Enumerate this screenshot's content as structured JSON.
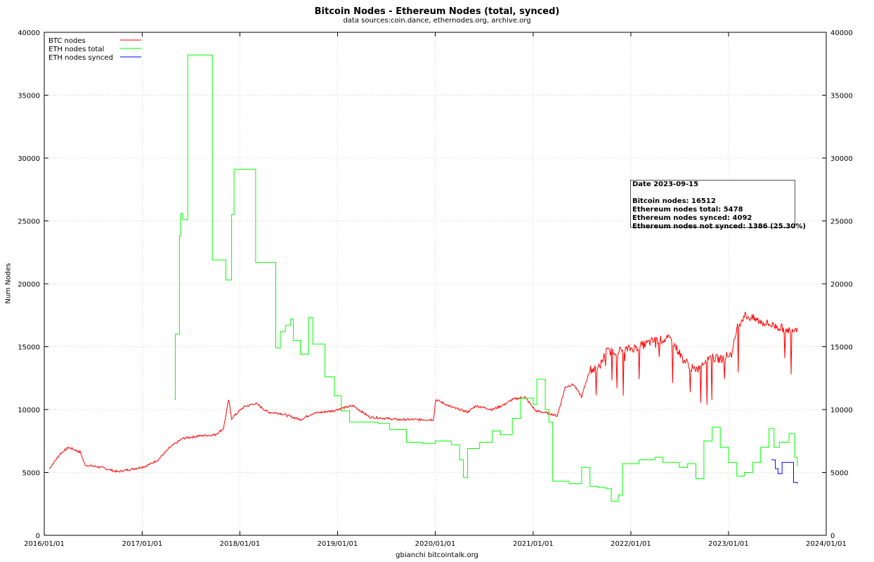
{
  "chart_data": {
    "type": "line",
    "title": "Bitcoin Nodes - Ethereum Nodes (total, synced)",
    "subtitle": "data sources:coin.dance, ethernodes.org, archive.org",
    "xlabel": "gbianchi bitcointalk.org",
    "ylabel": "Num Nodes",
    "x_ticks": [
      "2016/01/01",
      "2017/01/01",
      "2018/01/01",
      "2019/01/01",
      "2020/01/01",
      "2021/01/01",
      "2022/01/01",
      "2023/01/01",
      "2024/01/01"
    ],
    "y_ticks": [
      0,
      5000,
      10000,
      15000,
      20000,
      25000,
      30000,
      35000,
      40000
    ],
    "xlim": [
      "2016-01-01",
      "2024-01-01"
    ],
    "ylim": [
      0,
      40000
    ],
    "grid": true,
    "legend_position": "top-left",
    "series": [
      {
        "name": "BTC nodes",
        "color": "#ff0000",
        "style": "noisy",
        "points": [
          [
            "2016-01-20",
            5300
          ],
          [
            "2016-03-01",
            6500
          ],
          [
            "2016-04-01",
            7000
          ],
          [
            "2016-05-15",
            6600
          ],
          [
            "2016-06-01",
            5600
          ],
          [
            "2016-08-01",
            5400
          ],
          [
            "2016-10-01",
            5050
          ],
          [
            "2016-12-01",
            5300
          ],
          [
            "2017-01-15",
            5500
          ],
          [
            "2017-03-01",
            6000
          ],
          [
            "2017-04-15",
            7000
          ],
          [
            "2017-06-01",
            7700
          ],
          [
            "2017-08-01",
            7900
          ],
          [
            "2017-10-01",
            8000
          ],
          [
            "2017-11-01",
            8500
          ],
          [
            "2017-11-20",
            10800
          ],
          [
            "2017-12-01",
            9300
          ],
          [
            "2018-01-15",
            10200
          ],
          [
            "2018-03-01",
            10500
          ],
          [
            "2018-04-15",
            9800
          ],
          [
            "2018-06-01",
            9700
          ],
          [
            "2018-08-15",
            9200
          ],
          [
            "2018-10-01",
            9700
          ],
          [
            "2018-12-15",
            9900
          ],
          [
            "2019-01-15",
            10100
          ],
          [
            "2019-03-01",
            10300
          ],
          [
            "2019-05-01",
            9400
          ],
          [
            "2019-07-01",
            9300
          ],
          [
            "2019-08-15",
            9200
          ],
          [
            "2019-10-01",
            9200
          ],
          [
            "2019-12-25",
            9200
          ],
          [
            "2020-01-03",
            10800
          ],
          [
            "2020-03-01",
            10200
          ],
          [
            "2020-05-01",
            9800
          ],
          [
            "2020-06-01",
            10300
          ],
          [
            "2020-08-01",
            10000
          ],
          [
            "2020-09-15",
            10400
          ],
          [
            "2020-10-15",
            10800
          ],
          [
            "2020-12-01",
            11000
          ],
          [
            "2021-01-10",
            9900
          ],
          [
            "2021-03-01",
            9700
          ],
          [
            "2021-04-01",
            9500
          ],
          [
            "2021-05-01",
            11800
          ],
          [
            "2021-06-01",
            12000
          ],
          [
            "2021-07-01",
            11000
          ],
          [
            "2021-08-01",
            13200
          ],
          [
            "2021-09-01",
            13200
          ],
          [
            "2021-10-01",
            14600
          ],
          [
            "2021-12-01",
            14700
          ],
          [
            "2022-02-01",
            15000
          ],
          [
            "2022-04-01",
            15500
          ],
          [
            "2022-06-01",
            15600
          ],
          [
            "2022-07-15",
            14000
          ],
          [
            "2022-09-01",
            13000
          ],
          [
            "2022-10-15",
            14200
          ],
          [
            "2022-12-01",
            14000
          ],
          [
            "2023-01-15",
            14500
          ],
          [
            "2023-02-01",
            16500
          ],
          [
            "2023-03-01",
            17500
          ],
          [
            "2023-05-01",
            17000
          ],
          [
            "2023-07-01",
            16600
          ],
          [
            "2023-08-15",
            16300
          ],
          [
            "2023-09-15",
            16512
          ]
        ]
      },
      {
        "name": "ETH nodes total",
        "color": "#00ff00",
        "style": "step",
        "points": [
          [
            "2017-05-01",
            10800
          ],
          [
            "2017-05-05",
            16000
          ],
          [
            "2017-05-20",
            23800
          ],
          [
            "2017-05-25",
            25600
          ],
          [
            "2017-06-01",
            25100
          ],
          [
            "2017-06-20",
            38200
          ],
          [
            "2017-09-20",
            21900
          ],
          [
            "2017-11-10",
            20300
          ],
          [
            "2017-12-01",
            25500
          ],
          [
            "2017-12-10",
            29100
          ],
          [
            "2018-03-01",
            21700
          ],
          [
            "2018-05-15",
            14900
          ],
          [
            "2018-06-01",
            16200
          ],
          [
            "2018-06-20",
            16700
          ],
          [
            "2018-07-10",
            17200
          ],
          [
            "2018-07-20",
            15500
          ],
          [
            "2018-08-15",
            14400
          ],
          [
            "2018-09-15",
            17300
          ],
          [
            "2018-10-01",
            15200
          ],
          [
            "2018-11-15",
            12600
          ],
          [
            "2018-12-20",
            11100
          ],
          [
            "2019-01-15",
            9900
          ],
          [
            "2019-02-15",
            9000
          ],
          [
            "2019-06-01",
            8900
          ],
          [
            "2019-07-15",
            8400
          ],
          [
            "2019-09-15",
            7400
          ],
          [
            "2019-11-15",
            7300
          ],
          [
            "2020-01-01",
            7500
          ],
          [
            "2020-03-01",
            7200
          ],
          [
            "2020-04-01",
            6000
          ],
          [
            "2020-04-15",
            4600
          ],
          [
            "2020-05-01",
            6900
          ],
          [
            "2020-06-15",
            7400
          ],
          [
            "2020-08-01",
            8300
          ],
          [
            "2020-09-01",
            8000
          ],
          [
            "2020-10-15",
            9300
          ],
          [
            "2020-11-15",
            10900
          ],
          [
            "2021-01-01",
            10400
          ],
          [
            "2021-01-15",
            12400
          ],
          [
            "2021-02-15",
            10000
          ],
          [
            "2021-03-01",
            9000
          ],
          [
            "2021-03-15",
            4300
          ],
          [
            "2021-05-15",
            4100
          ],
          [
            "2021-07-01",
            5400
          ],
          [
            "2021-08-01",
            3900
          ],
          [
            "2021-09-01",
            3800
          ],
          [
            "2021-10-01",
            3700
          ],
          [
            "2021-10-20",
            2700
          ],
          [
            "2021-11-15",
            3200
          ],
          [
            "2021-12-01",
            5700
          ],
          [
            "2022-02-01",
            6000
          ],
          [
            "2022-04-01",
            6200
          ],
          [
            "2022-05-01",
            5800
          ],
          [
            "2022-07-01",
            5400
          ],
          [
            "2022-08-01",
            5700
          ],
          [
            "2022-09-01",
            4500
          ],
          [
            "2022-10-01",
            7500
          ],
          [
            "2022-11-01",
            8600
          ],
          [
            "2022-12-01",
            7000
          ],
          [
            "2023-01-01",
            5800
          ],
          [
            "2023-02-01",
            4700
          ],
          [
            "2023-03-01",
            5000
          ],
          [
            "2023-04-01",
            5800
          ],
          [
            "2023-05-01",
            7000
          ],
          [
            "2023-06-01",
            8500
          ],
          [
            "2023-06-20",
            7000
          ],
          [
            "2023-07-10",
            7400
          ],
          [
            "2023-08-15",
            8100
          ],
          [
            "2023-09-05",
            6200
          ],
          [
            "2023-09-15",
            5478
          ]
        ]
      },
      {
        "name": "ETH nodes synced",
        "color": "#0000ff",
        "style": "step",
        "points": [
          [
            "2023-06-10",
            6000
          ],
          [
            "2023-06-25",
            5300
          ],
          [
            "2023-07-05",
            4900
          ],
          [
            "2023-07-20",
            5800
          ],
          [
            "2023-09-01",
            4200
          ],
          [
            "2023-09-15",
            4092
          ]
        ]
      }
    ]
  },
  "info_box": {
    "date_line": "Date 2023-09-15",
    "btc_line": "Bitcoin nodes: 16512",
    "eth_total_line": "Ethereum nodes total: 5478",
    "eth_synced_line": "Ethereum nodes synced: 4092",
    "eth_not_synced_line": "Ethereum nodes not synced: 1386 (25.30%)"
  }
}
